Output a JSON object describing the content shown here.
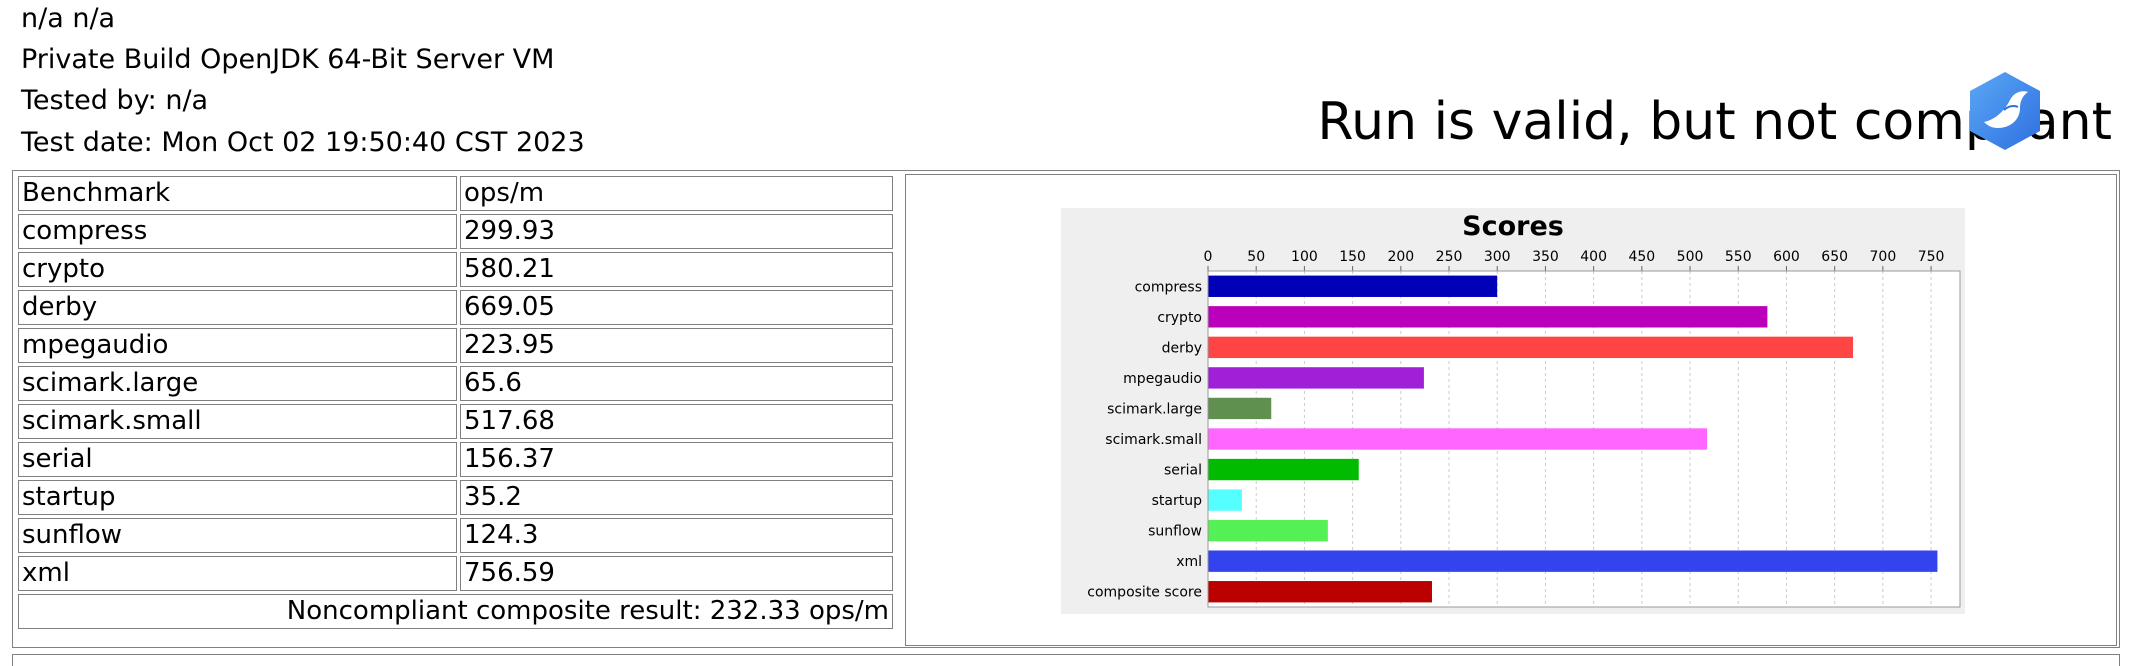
{
  "header": {
    "line1": "n/a n/a",
    "line2": "Private Build OpenJDK 64-Bit Server VM",
    "line3": "Tested by: n/a",
    "line4": "Test date: Mon Oct 02 19:50:40 CST 2023",
    "run_status": "Run is valid, but not compliant"
  },
  "table": {
    "header": {
      "benchmark": "Benchmark",
      "ops": "ops/m"
    },
    "rows": [
      {
        "name": "compress",
        "value": "299.93"
      },
      {
        "name": "crypto",
        "value": "580.21"
      },
      {
        "name": "derby",
        "value": "669.05"
      },
      {
        "name": "mpegaudio",
        "value": "223.95"
      },
      {
        "name": "scimark.large",
        "value": "65.6"
      },
      {
        "name": "scimark.small",
        "value": "517.68"
      },
      {
        "name": "serial",
        "value": "156.37"
      },
      {
        "name": "startup",
        "value": "35.2"
      },
      {
        "name": "sunflow",
        "value": "124.3"
      },
      {
        "name": "xml",
        "value": "756.59"
      }
    ],
    "composite": "Noncompliant composite result: 232.33 ops/m"
  },
  "chart_data": {
    "type": "bar",
    "orientation": "horizontal",
    "title": "Scores",
    "xlabel": "",
    "ylabel": "",
    "xlim": [
      0,
      780
    ],
    "xticks": [
      0,
      50,
      100,
      150,
      200,
      250,
      300,
      350,
      400,
      450,
      500,
      550,
      600,
      650,
      700,
      750
    ],
    "grid": true,
    "categories": [
      "compress",
      "crypto",
      "derby",
      "mpegaudio",
      "scimark.large",
      "scimark.small",
      "serial",
      "startup",
      "sunflow",
      "xml",
      "composite score"
    ],
    "values": [
      299.93,
      580.21,
      669.05,
      223.95,
      65.6,
      517.68,
      156.37,
      35.2,
      124.3,
      756.59,
      232.33
    ],
    "colors": [
      "#0000b8",
      "#bb00bb",
      "#ff4444",
      "#a020d8",
      "#5f9050",
      "#ff66ff",
      "#00bb00",
      "#55ffff",
      "#55f055",
      "#3344ee",
      "#bb0000"
    ],
    "plot_background": "#efefef"
  },
  "icons": {
    "overlay": "bird-badge-icon"
  }
}
